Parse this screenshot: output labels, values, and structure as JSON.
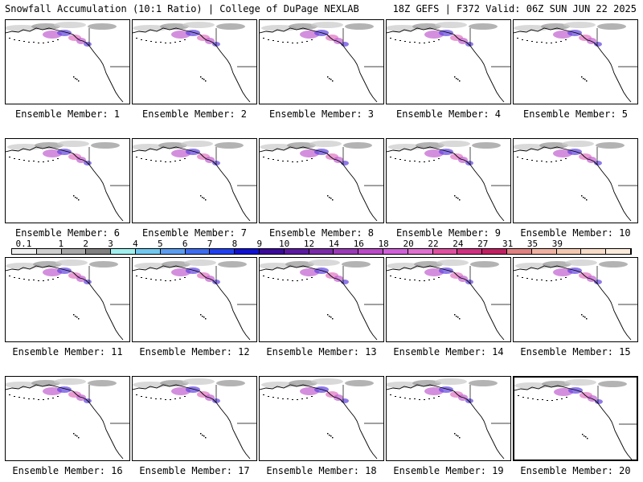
{
  "header": {
    "left": "Snowfall Accumulation (10:1 Ratio) | College of DuPage NEXLAB",
    "right": "18Z GEFS | F372 Valid: 06Z SUN JUN 22 2025"
  },
  "members": [
    "Ensemble Member: 1",
    "Ensemble Member: 2",
    "Ensemble Member: 3",
    "Ensemble Member: 4",
    "Ensemble Member: 5",
    "Ensemble Member: 6",
    "Ensemble Member: 7",
    "Ensemble Member: 8",
    "Ensemble Member: 9",
    "Ensemble Member: 10",
    "Ensemble Member: 11",
    "Ensemble Member: 12",
    "Ensemble Member: 13",
    "Ensemble Member: 14",
    "Ensemble Member: 15",
    "Ensemble Member: 16",
    "Ensemble Member: 17",
    "Ensemble Member: 18",
    "Ensemble Member: 19",
    "Ensemble Member: 20"
  ],
  "colorbar": {
    "labels": [
      "0.1",
      "1",
      "2",
      "3",
      "4",
      "5",
      "6",
      "7",
      "8",
      "9",
      "10",
      "12",
      "14",
      "16",
      "18",
      "20",
      "22",
      "24",
      "27",
      "31",
      "35",
      "39"
    ],
    "colors": [
      "#f0f0f0",
      "#d0d0d0",
      "#a8a8a8",
      "#808080",
      "#a0f0f0",
      "#70c8f0",
      "#5a9cf0",
      "#3c6cf0",
      "#2040f0",
      "#1010d0",
      "#3a0a9a",
      "#5a1aa0",
      "#7a2aa8",
      "#9a3ab8",
      "#ba4ac8",
      "#d060d8",
      "#e070d0",
      "#e050a0",
      "#d03080",
      "#c02060",
      "#e08080",
      "#f0b0a0",
      "#f4c8b0",
      "#f8dcc8",
      "#fcecdc"
    ]
  },
  "map": {
    "land_color": "#ffffff",
    "snow_colors": [
      "#cccccc",
      "#9a9a9a",
      "#c060d0",
      "#6040e0",
      "#e070c0"
    ]
  }
}
